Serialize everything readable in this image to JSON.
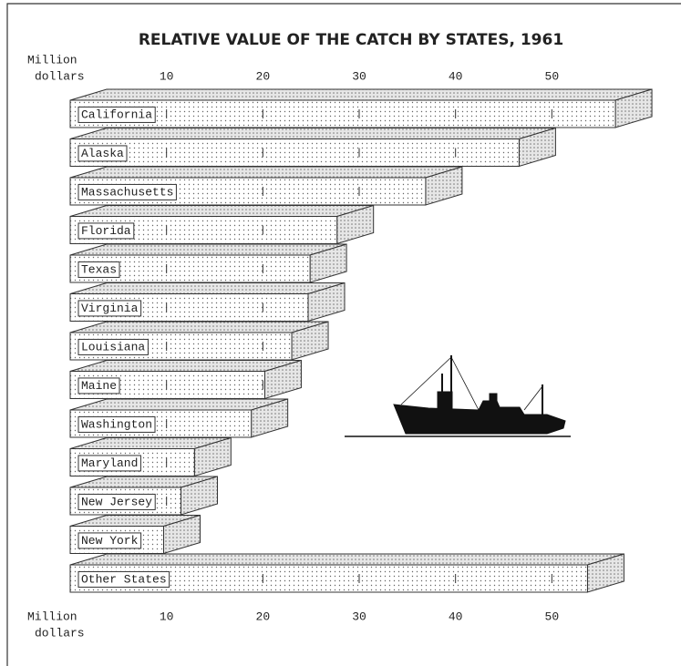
{
  "chart_data": {
    "type": "bar3d",
    "title": "RELATIVE VALUE OF THE CATCH BY STATES, 1961",
    "xlabel_lines": [
      "Million",
      "dollars"
    ],
    "categories": [
      "California",
      "Alaska",
      "Massachusetts",
      "Florida",
      "Texas",
      "Virginia",
      "Louisiana",
      "Maine",
      "Washington",
      "Maryland",
      "New Jersey",
      "New York",
      "Other States"
    ],
    "values": [
      56.6,
      46.6,
      36.9,
      27.7,
      24.9,
      24.7,
      23.0,
      20.2,
      18.8,
      12.9,
      11.5,
      9.7,
      53.7
    ],
    "xlim": [
      0,
      60
    ],
    "xticks": [
      10,
      20,
      30,
      40,
      50
    ]
  }
}
